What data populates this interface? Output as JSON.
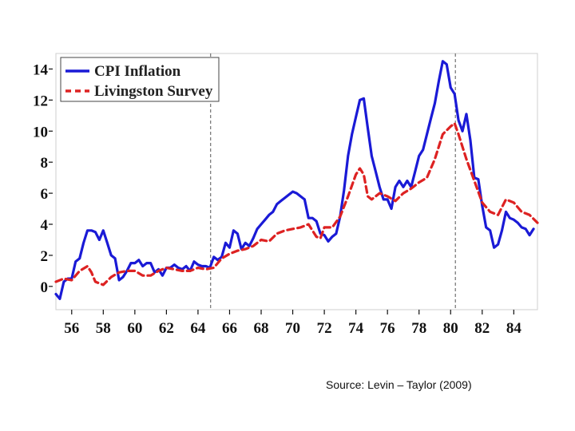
{
  "chart_data": {
    "type": "line",
    "xlim": [
      1955.0,
      1985.5
    ],
    "ylim": [
      -1.5,
      15
    ],
    "x_ticks": [
      56,
      58,
      60,
      62,
      64,
      66,
      68,
      70,
      72,
      74,
      76,
      78,
      80,
      82,
      84
    ],
    "y_ticks": [
      0,
      2,
      4,
      6,
      8,
      10,
      12,
      14
    ],
    "grid": false,
    "legend_position": "top-left",
    "vlines": [
      1964.8,
      1980.3
    ],
    "series": [
      {
        "name": "CPI Inflation",
        "color": "#1a1ad6",
        "style": "solid",
        "points": [
          [
            1955.0,
            -0.5
          ],
          [
            1955.25,
            -0.8
          ],
          [
            1955.5,
            0.3
          ],
          [
            1955.75,
            0.5
          ],
          [
            1956.0,
            0.5
          ],
          [
            1956.25,
            1.6
          ],
          [
            1956.5,
            1.8
          ],
          [
            1956.75,
            2.8
          ],
          [
            1957.0,
            3.6
          ],
          [
            1957.25,
            3.6
          ],
          [
            1957.5,
            3.5
          ],
          [
            1957.75,
            3.0
          ],
          [
            1958.0,
            3.6
          ],
          [
            1958.25,
            2.8
          ],
          [
            1958.5,
            2.0
          ],
          [
            1958.75,
            1.8
          ],
          [
            1959.0,
            0.4
          ],
          [
            1959.25,
            0.6
          ],
          [
            1959.5,
            1.0
          ],
          [
            1959.75,
            1.5
          ],
          [
            1960.0,
            1.5
          ],
          [
            1960.25,
            1.7
          ],
          [
            1960.5,
            1.3
          ],
          [
            1960.75,
            1.5
          ],
          [
            1961.0,
            1.5
          ],
          [
            1961.25,
            0.9
          ],
          [
            1961.5,
            1.1
          ],
          [
            1961.75,
            0.7
          ],
          [
            1962.0,
            1.2
          ],
          [
            1962.25,
            1.2
          ],
          [
            1962.5,
            1.4
          ],
          [
            1962.75,
            1.2
          ],
          [
            1963.0,
            1.1
          ],
          [
            1963.25,
            1.3
          ],
          [
            1963.5,
            1.0
          ],
          [
            1963.75,
            1.6
          ],
          [
            1964.0,
            1.4
          ],
          [
            1964.25,
            1.3
          ],
          [
            1964.5,
            1.3
          ],
          [
            1964.75,
            1.2
          ],
          [
            1965.0,
            1.9
          ],
          [
            1965.25,
            1.7
          ],
          [
            1965.5,
            1.9
          ],
          [
            1965.75,
            2.8
          ],
          [
            1966.0,
            2.5
          ],
          [
            1966.25,
            3.6
          ],
          [
            1966.5,
            3.4
          ],
          [
            1966.75,
            2.4
          ],
          [
            1967.0,
            2.8
          ],
          [
            1967.25,
            2.6
          ],
          [
            1967.5,
            3.1
          ],
          [
            1967.75,
            3.7
          ],
          [
            1968.0,
            4.0
          ],
          [
            1968.25,
            4.3
          ],
          [
            1968.5,
            4.6
          ],
          [
            1968.75,
            4.8
          ],
          [
            1969.0,
            5.3
          ],
          [
            1969.25,
            5.5
          ],
          [
            1969.5,
            5.7
          ],
          [
            1969.75,
            5.9
          ],
          [
            1970.0,
            6.1
          ],
          [
            1970.25,
            6.0
          ],
          [
            1970.5,
            5.8
          ],
          [
            1970.75,
            5.6
          ],
          [
            1971.0,
            4.4
          ],
          [
            1971.25,
            4.4
          ],
          [
            1971.5,
            4.2
          ],
          [
            1971.75,
            3.4
          ],
          [
            1972.0,
            3.3
          ],
          [
            1972.25,
            2.9
          ],
          [
            1972.5,
            3.2
          ],
          [
            1972.75,
            3.4
          ],
          [
            1973.0,
            4.5
          ],
          [
            1973.25,
            6.2
          ],
          [
            1973.5,
            8.4
          ],
          [
            1973.75,
            9.8
          ],
          [
            1974.0,
            10.9
          ],
          [
            1974.25,
            12.0
          ],
          [
            1974.5,
            12.1
          ],
          [
            1974.75,
            10.2
          ],
          [
            1975.0,
            8.4
          ],
          [
            1975.25,
            7.4
          ],
          [
            1975.5,
            6.4
          ],
          [
            1975.75,
            5.6
          ],
          [
            1976.0,
            5.6
          ],
          [
            1976.25,
            5.0
          ],
          [
            1976.5,
            6.4
          ],
          [
            1976.75,
            6.8
          ],
          [
            1977.0,
            6.4
          ],
          [
            1977.25,
            6.8
          ],
          [
            1977.5,
            6.4
          ],
          [
            1977.75,
            7.4
          ],
          [
            1978.0,
            8.4
          ],
          [
            1978.25,
            8.8
          ],
          [
            1978.5,
            9.8
          ],
          [
            1978.75,
            10.8
          ],
          [
            1979.0,
            11.8
          ],
          [
            1979.25,
            13.2
          ],
          [
            1979.5,
            14.5
          ],
          [
            1979.75,
            14.3
          ],
          [
            1980.0,
            12.8
          ],
          [
            1980.25,
            12.4
          ],
          [
            1980.5,
            10.7
          ],
          [
            1980.75,
            10.0
          ],
          [
            1981.0,
            11.1
          ],
          [
            1981.25,
            9.4
          ],
          [
            1981.5,
            7.0
          ],
          [
            1981.75,
            6.9
          ],
          [
            1982.0,
            5.2
          ],
          [
            1982.25,
            3.8
          ],
          [
            1982.5,
            3.6
          ],
          [
            1982.75,
            2.5
          ],
          [
            1983.0,
            2.7
          ],
          [
            1983.25,
            3.6
          ],
          [
            1983.5,
            4.8
          ],
          [
            1983.75,
            4.4
          ],
          [
            1984.0,
            4.3
          ],
          [
            1984.25,
            4.1
          ],
          [
            1984.5,
            3.8
          ],
          [
            1984.75,
            3.7
          ],
          [
            1985.0,
            3.3
          ],
          [
            1985.25,
            3.7
          ]
        ]
      },
      {
        "name": "Livingston Survey",
        "color": "#dd2222",
        "style": "dashed",
        "points": [
          [
            1955.0,
            0.3
          ],
          [
            1955.5,
            0.5
          ],
          [
            1956.0,
            0.4
          ],
          [
            1956.5,
            1.0
          ],
          [
            1957.0,
            1.3
          ],
          [
            1957.25,
            0.9
          ],
          [
            1957.5,
            0.3
          ],
          [
            1958.0,
            0.1
          ],
          [
            1958.5,
            0.6
          ],
          [
            1959.0,
            0.9
          ],
          [
            1959.5,
            1.0
          ],
          [
            1960.0,
            1.0
          ],
          [
            1960.5,
            0.7
          ],
          [
            1961.0,
            0.7
          ],
          [
            1961.5,
            1.0
          ],
          [
            1962.0,
            1.2
          ],
          [
            1962.5,
            1.1
          ],
          [
            1963.0,
            1.0
          ],
          [
            1963.5,
            1.0
          ],
          [
            1964.0,
            1.2
          ],
          [
            1964.5,
            1.1
          ],
          [
            1965.0,
            1.2
          ],
          [
            1965.5,
            1.8
          ],
          [
            1966.0,
            2.1
          ],
          [
            1966.5,
            2.3
          ],
          [
            1967.0,
            2.4
          ],
          [
            1967.5,
            2.6
          ],
          [
            1968.0,
            3.0
          ],
          [
            1968.5,
            2.9
          ],
          [
            1969.0,
            3.4
          ],
          [
            1969.5,
            3.6
          ],
          [
            1970.0,
            3.7
          ],
          [
            1970.5,
            3.8
          ],
          [
            1971.0,
            4.0
          ],
          [
            1971.5,
            3.2
          ],
          [
            1971.75,
            3.1
          ],
          [
            1972.0,
            3.8
          ],
          [
            1972.5,
            3.8
          ],
          [
            1973.0,
            4.5
          ],
          [
            1973.5,
            5.8
          ],
          [
            1974.0,
            7.2
          ],
          [
            1974.25,
            7.6
          ],
          [
            1974.5,
            7.2
          ],
          [
            1974.75,
            5.8
          ],
          [
            1975.0,
            5.6
          ],
          [
            1975.5,
            6.0
          ],
          [
            1976.0,
            5.8
          ],
          [
            1976.5,
            5.5
          ],
          [
            1977.0,
            6.0
          ],
          [
            1977.5,
            6.3
          ],
          [
            1978.0,
            6.7
          ],
          [
            1978.5,
            7.0
          ],
          [
            1979.0,
            8.2
          ],
          [
            1979.5,
            9.8
          ],
          [
            1980.0,
            10.3
          ],
          [
            1980.25,
            10.5
          ],
          [
            1980.5,
            9.8
          ],
          [
            1981.0,
            8.2
          ],
          [
            1981.5,
            6.8
          ],
          [
            1982.0,
            5.4
          ],
          [
            1982.5,
            4.8
          ],
          [
            1983.0,
            4.6
          ],
          [
            1983.5,
            5.6
          ],
          [
            1984.0,
            5.4
          ],
          [
            1984.5,
            4.8
          ],
          [
            1985.0,
            4.6
          ],
          [
            1985.5,
            4.1
          ]
        ]
      }
    ]
  },
  "source_text": "Source: Levin – Taylor (2009)"
}
